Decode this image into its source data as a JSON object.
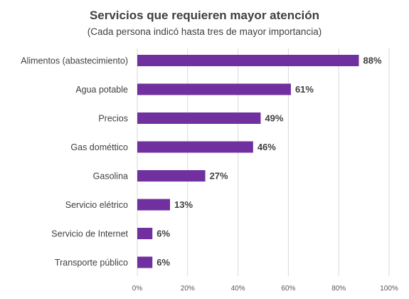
{
  "chart_data": {
    "type": "bar",
    "orientation": "horizontal",
    "title": "Servicios que requieren mayor atención",
    "subtitle": "(Cada persona indicó hasta tres de mayor importancia)",
    "categories": [
      "Alimentos (abastecimiento)",
      "Agua potable",
      "Precios",
      "Gas dométtico",
      "Gasolina",
      "Servicio elétrico",
      "Servicio de Internet",
      "Transporte público"
    ],
    "values": [
      88,
      61,
      49,
      46,
      27,
      13,
      6,
      6
    ],
    "value_labels": [
      "88%",
      "61%",
      "49%",
      "46%",
      "27%",
      "13%",
      "6%",
      "6%"
    ],
    "xlim": [
      0,
      100
    ],
    "x_ticks": [
      0,
      20,
      40,
      60,
      80,
      100
    ],
    "x_tick_labels": [
      "0%",
      "20%",
      "40%",
      "60%",
      "80%",
      "100%"
    ],
    "grid": true,
    "legend": "none",
    "bar_color": "#7030a0"
  }
}
